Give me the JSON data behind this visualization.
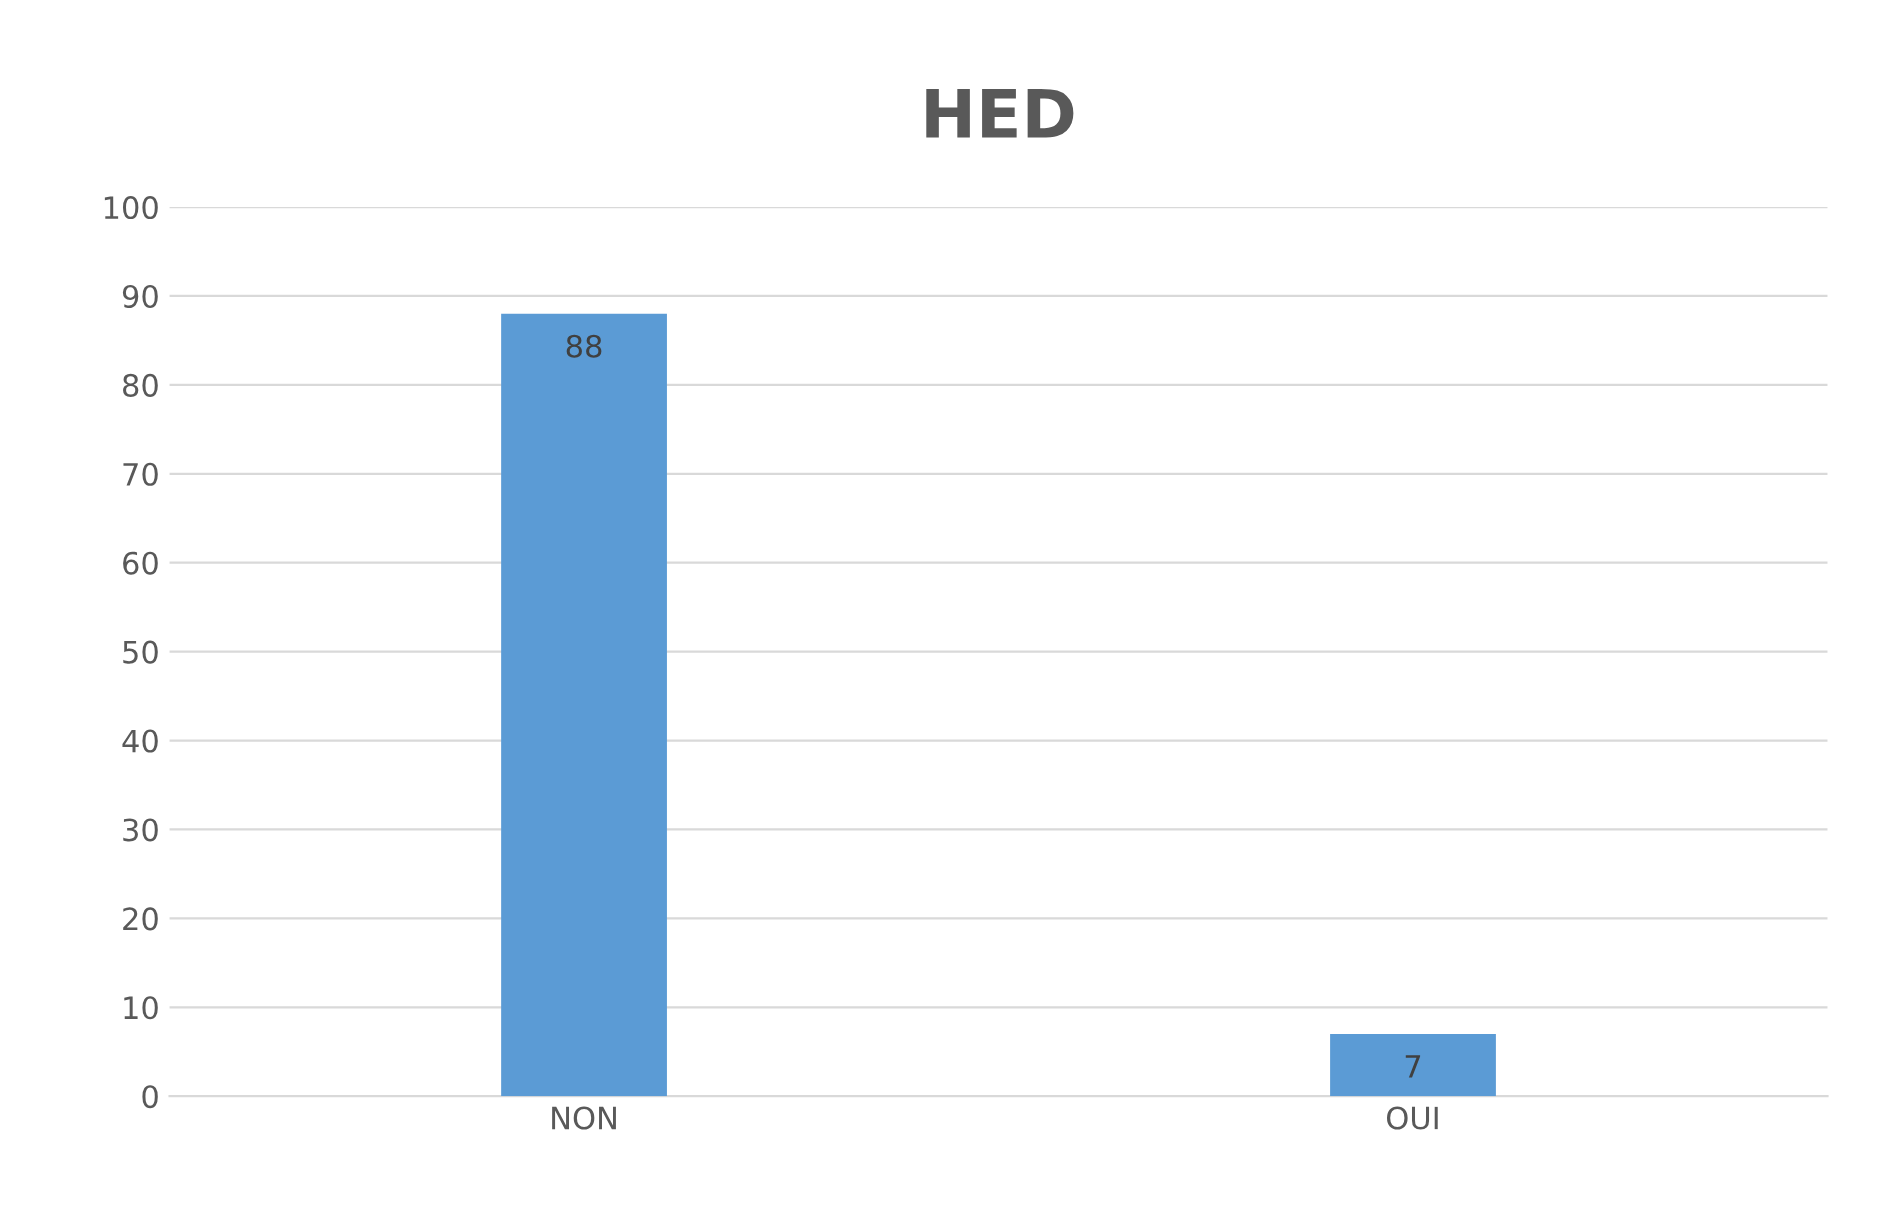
{
  "chart_data": {
    "type": "bar",
    "title": "HED",
    "categories": [
      "NON",
      "OUI"
    ],
    "values": [
      88,
      7
    ],
    "color": "#5b9bd5",
    "ylim": [
      0,
      100
    ],
    "yticks": [
      0,
      10,
      20,
      30,
      40,
      50,
      60,
      70,
      80,
      90,
      100
    ],
    "grid": "y",
    "data_labels": true,
    "legend": false
  }
}
